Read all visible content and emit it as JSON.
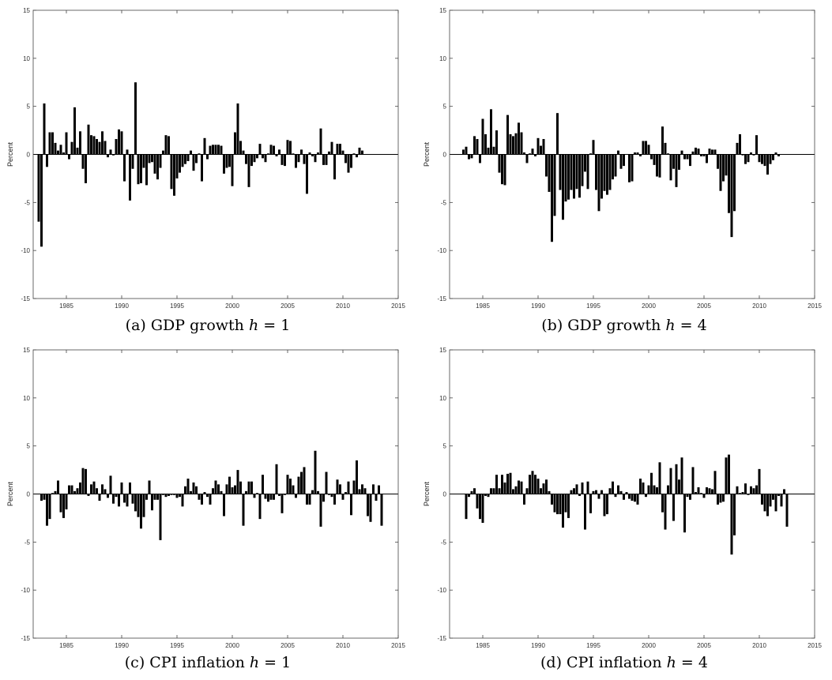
{
  "ylabel": "Percent",
  "chart_data": [
    {
      "type": "bar",
      "caption": "(a) GDP growth ",
      "caption_var": "h",
      "caption_eq": " = 1",
      "ylabel": "Percent",
      "ylim": [
        -15,
        15
      ],
      "yticks": [
        -15,
        -10,
        -5,
        0,
        5,
        10,
        15
      ],
      "xlim": [
        1982,
        2015
      ],
      "xticks": [
        1985,
        1990,
        1995,
        2000,
        2005,
        2010,
        2015
      ],
      "x_start": 1982.5,
      "x_step": 0.25,
      "values": [
        -7.0,
        -9.6,
        5.3,
        -1.3,
        2.3,
        2.3,
        1.2,
        0.4,
        1.0,
        0.2,
        2.3,
        -0.5,
        1.3,
        4.9,
        0.7,
        2.4,
        -1.5,
        -3.0,
        3.1,
        2.0,
        1.9,
        1.6,
        1.3,
        2.4,
        1.4,
        -0.3,
        0.5,
        -0.1,
        1.6,
        2.6,
        2.4,
        -2.8,
        0.5,
        -4.8,
        -1.5,
        7.5,
        -3.1,
        -3.0,
        -1.4,
        -3.2,
        -0.9,
        -0.8,
        -2.0,
        -2.6,
        -1.4,
        0.4,
        2.0,
        1.9,
        -3.6,
        -4.3,
        -2.5,
        -1.9,
        -1.3,
        -1.0,
        -0.7,
        0.4,
        -1.7,
        -0.9,
        0.1,
        -2.8,
        1.7,
        -0.5,
        0.9,
        1.0,
        1.0,
        1.0,
        0.9,
        -2.0,
        -1.4,
        -1.3,
        -3.3,
        2.3,
        5.3,
        1.4,
        0.4,
        -1.0,
        -3.4,
        -1.2,
        -0.8,
        -0.4,
        1.1,
        -0.4,
        -0.8,
        0.1,
        1.0,
        0.9,
        -0.2,
        0.5,
        -1.1,
        -1.2,
        1.5,
        1.4,
        0.1,
        -1.4,
        -0.8,
        0.5,
        -1.0,
        -4.1,
        0.2,
        -0.2,
        -0.8,
        0.2,
        2.7,
        -1.1,
        -1.1,
        0.3,
        1.3,
        -2.6,
        1.1,
        1.1,
        0.4,
        -0.9,
        -1.9,
        -1.4,
        0.1,
        -0.3,
        0.7,
        0.4
      ]
    },
    {
      "type": "bar",
      "caption": "(b) GDP growth ",
      "caption_var": "h",
      "caption_eq": " = 4",
      "ylabel": "Percent",
      "ylim": [
        -15,
        15
      ],
      "yticks": [
        -15,
        -10,
        -5,
        0,
        5,
        10,
        15
      ],
      "xlim": [
        1982,
        2015
      ],
      "xticks": [
        1985,
        1990,
        1995,
        2000,
        2005,
        2010,
        2015
      ],
      "x_start": 1983.25,
      "x_step": 0.25,
      "values": [
        0.5,
        0.8,
        -0.5,
        -0.4,
        1.9,
        1.6,
        -0.9,
        3.7,
        2.1,
        0.7,
        4.7,
        0.8,
        2.5,
        -1.9,
        -3.1,
        -3.2,
        4.1,
        2.1,
        1.9,
        2.2,
        3.3,
        2.3,
        0.2,
        -0.9,
        0.1,
        0.6,
        -0.2,
        1.7,
        0.9,
        1.6,
        -2.3,
        -3.9,
        -9.1,
        -6.4,
        4.3,
        -3.7,
        -6.8,
        -4.9,
        -4.7,
        -3.7,
        -4.6,
        -3.6,
        -4.5,
        -3.3,
        -1.8,
        -3.6,
        0.1,
        1.5,
        -3.7,
        -5.9,
        -4.6,
        -3.8,
        -4.2,
        -3.7,
        -2.6,
        -2.3,
        0.4,
        -1.5,
        -1.2,
        0.0,
        -2.9,
        -2.8,
        0.2,
        0.2,
        -0.2,
        1.4,
        1.4,
        1.0,
        -0.5,
        -1.1,
        -2.3,
        -2.4,
        2.9,
        1.2,
        0.1,
        -2.7,
        -1.5,
        -3.4,
        -1.6,
        0.4,
        -0.5,
        -0.5,
        -1.2,
        0.3,
        0.7,
        0.6,
        -0.2,
        -0.2,
        -0.9,
        0.6,
        0.5,
        0.5,
        -1.5,
        -3.8,
        -2.8,
        -2.2,
        -6.1,
        -8.6,
        -5.9,
        1.2,
        2.1,
        -0.1,
        -1.0,
        -0.8,
        0.2,
        -0.1,
        2.0,
        -0.8,
        -1.0,
        -1.2,
        -2.1,
        -1.0,
        -0.6,
        0.2,
        -0.2
      ]
    },
    {
      "type": "bar",
      "caption": "(c) CPI inflation ",
      "caption_var": "h",
      "caption_eq": " = 1",
      "ylabel": "Percent",
      "ylim": [
        -15,
        15
      ],
      "yticks": [
        -15,
        -10,
        -5,
        0,
        5,
        10,
        15
      ],
      "xlim": [
        1982,
        2015
      ],
      "xticks": [
        1985,
        1990,
        1995,
        2000,
        2005,
        2010,
        2015
      ],
      "x_start": 1982.75,
      "x_step": 0.25,
      "values": [
        -0.7,
        -0.6,
        -3.3,
        -2.6,
        0.1,
        0.3,
        1.4,
        -1.9,
        -2.5,
        -1.6,
        0.9,
        0.9,
        0.3,
        0.6,
        1.2,
        2.7,
        2.6,
        -0.2,
        1.0,
        1.3,
        0.6,
        -0.7,
        1.0,
        0.5,
        -0.4,
        1.9,
        -1.0,
        -0.3,
        -1.3,
        1.2,
        -0.9,
        -1.3,
        1.2,
        -1.0,
        -1.8,
        -2.4,
        -3.6,
        -2.4,
        -0.6,
        1.4,
        -1.7,
        -0.6,
        -0.6,
        -4.8,
        -0.1,
        -0.3,
        -0.2,
        -0.1,
        -0.1,
        -0.4,
        -0.3,
        -1.3,
        0.8,
        1.6,
        0.3,
        1.2,
        0.8,
        -0.6,
        -1.1,
        0.2,
        -0.3,
        -1.1,
        0.6,
        1.4,
        1.0,
        0.3,
        -2.3,
        1.0,
        1.8,
        0.7,
        0.9,
        2.5,
        1.3,
        -3.3,
        0.3,
        1.3,
        1.3,
        -0.4,
        0.1,
        -2.6,
        2.0,
        -0.5,
        -0.8,
        -0.6,
        -0.6,
        3.1,
        -0.2,
        -2.0,
        -0.1,
        2.0,
        1.6,
        0.9,
        -0.4,
        1.8,
        2.3,
        2.8,
        -1.1,
        -1.1,
        0.4,
        4.5,
        0.3,
        -3.4,
        -0.8,
        2.3,
        -0.1,
        -0.3,
        -1.1,
        1.5,
        1.0,
        -0.6,
        0.2,
        1.3,
        -2.2,
        1.4,
        3.5,
        0.5,
        1.0,
        0.6,
        -2.3,
        -2.9,
        1.0,
        -0.7,
        0.9,
        -3.3
      ]
    },
    {
      "type": "bar",
      "caption": "(d) CPI inflation ",
      "caption_var": "h",
      "caption_eq": " = 4",
      "ylabel": "Percent",
      "ylim": [
        -15,
        15
      ],
      "yticks": [
        -15,
        -10,
        -5,
        0,
        5,
        10,
        15
      ],
      "xlim": [
        1982,
        2015
      ],
      "xticks": [
        1985,
        1990,
        1995,
        2000,
        2005,
        2010,
        2015
      ],
      "x_start": 1983.5,
      "x_step": 0.25,
      "values": [
        -2.6,
        -0.3,
        0.3,
        0.6,
        -1.5,
        -2.6,
        -3.0,
        -0.2,
        -0.3,
        0.6,
        0.6,
        2.0,
        0.6,
        2.0,
        1.2,
        2.1,
        2.2,
        0.5,
        0.8,
        1.4,
        1.3,
        -1.1,
        0.6,
        2.0,
        2.4,
        2.0,
        1.6,
        0.6,
        1.1,
        1.5,
        0.3,
        -1.1,
        -1.9,
        -2.1,
        -2.1,
        -3.5,
        -1.9,
        -2.5,
        0.4,
        0.6,
        1.0,
        -0.2,
        1.2,
        -3.7,
        1.3,
        -2.0,
        0.3,
        0.4,
        -0.5,
        0.4,
        -2.3,
        -2.1,
        0.6,
        1.3,
        -0.3,
        0.9,
        0.3,
        -0.6,
        0.2,
        -0.5,
        -0.7,
        -0.8,
        -1.1,
        1.6,
        1.2,
        -0.3,
        0.9,
        2.2,
        0.9,
        0.7,
        3.3,
        -1.9,
        -3.7,
        0.9,
        2.7,
        -2.8,
        3.1,
        1.5,
        3.8,
        -4.0,
        -0.3,
        -0.6,
        2.8,
        0.2,
        0.7,
        0.1,
        -0.4,
        0.7,
        0.6,
        0.5,
        2.4,
        -1.1,
        -0.9,
        -0.8,
        3.8,
        4.1,
        -6.3,
        -4.3,
        0.8,
        0.1,
        0.2,
        1.1,
        -0.1,
        0.8,
        0.6,
        0.9,
        2.6,
        -1.1,
        -1.8,
        -2.3,
        -1.3,
        -0.6,
        -1.8,
        -0.2,
        -1.3,
        0.5,
        -3.4
      ]
    }
  ]
}
